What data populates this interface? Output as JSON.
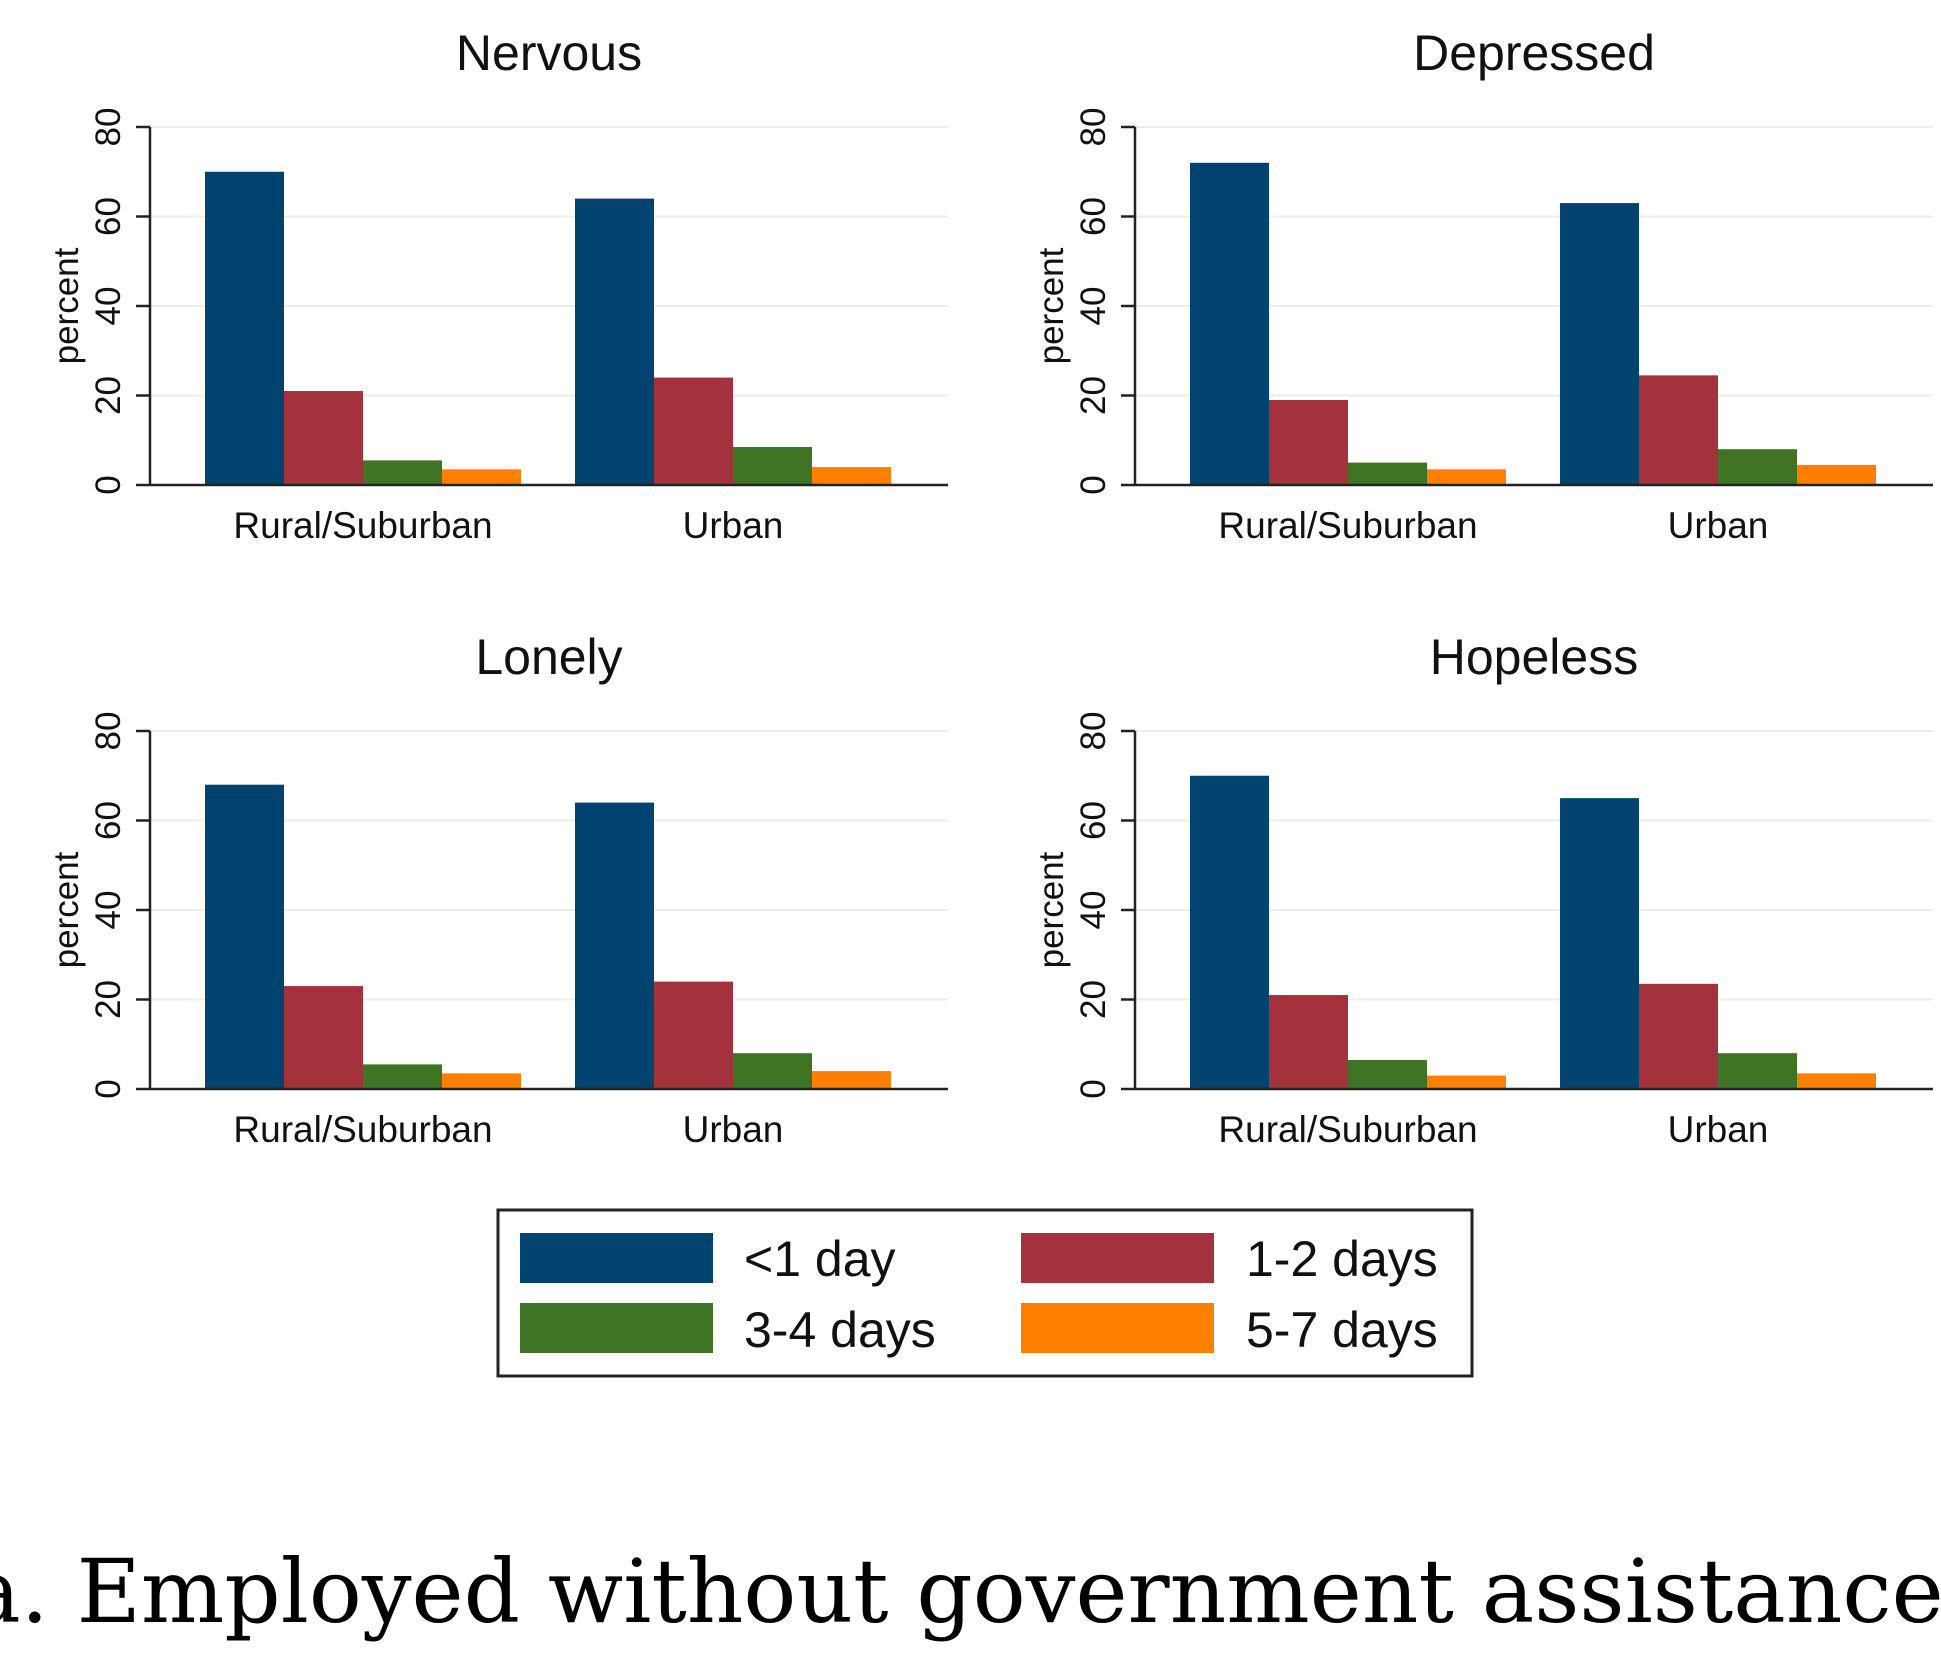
{
  "caption": "a. Employed without government assistance.",
  "legend": [
    {
      "label": "<1 day",
      "color": "#00436f"
    },
    {
      "label": "1-2 days",
      "color": "#a4323d"
    },
    {
      "label": "3-4 days",
      "color": "#3e7424"
    },
    {
      "label": "5-7 days",
      "color": "#ff7f00"
    }
  ],
  "chart_data": [
    {
      "type": "bar",
      "title": "Nervous",
      "ylabel": "percent",
      "ylim": [
        0,
        80
      ],
      "yticks": [
        0,
        20,
        40,
        60,
        80
      ],
      "categories": [
        "Rural/Suburban",
        "Urban"
      ],
      "series": [
        {
          "name": "<1 day",
          "values": [
            70,
            64
          ]
        },
        {
          "name": "1-2 days",
          "values": [
            21,
            24
          ]
        },
        {
          "name": "3-4 days",
          "values": [
            5.5,
            8.5
          ]
        },
        {
          "name": "5-7 days",
          "values": [
            3.5,
            4
          ]
        }
      ]
    },
    {
      "type": "bar",
      "title": "Depressed",
      "ylabel": "percent",
      "ylim": [
        0,
        80
      ],
      "yticks": [
        0,
        20,
        40,
        60,
        80
      ],
      "categories": [
        "Rural/Suburban",
        "Urban"
      ],
      "series": [
        {
          "name": "<1 day",
          "values": [
            72,
            63
          ]
        },
        {
          "name": "1-2 days",
          "values": [
            19,
            24.5
          ]
        },
        {
          "name": "3-4 days",
          "values": [
            5,
            8
          ]
        },
        {
          "name": "5-7 days",
          "values": [
            3.5,
            4.5
          ]
        }
      ]
    },
    {
      "type": "bar",
      "title": "Lonely",
      "ylabel": "percent",
      "ylim": [
        0,
        80
      ],
      "yticks": [
        0,
        20,
        40,
        60,
        80
      ],
      "categories": [
        "Rural/Suburban",
        "Urban"
      ],
      "series": [
        {
          "name": "<1 day",
          "values": [
            68,
            64
          ]
        },
        {
          "name": "1-2 days",
          "values": [
            23,
            24
          ]
        },
        {
          "name": "3-4 days",
          "values": [
            5.5,
            8
          ]
        },
        {
          "name": "5-7 days",
          "values": [
            3.5,
            4
          ]
        }
      ]
    },
    {
      "type": "bar",
      "title": "Hopeless",
      "ylabel": "percent",
      "ylim": [
        0,
        80
      ],
      "yticks": [
        0,
        20,
        40,
        60,
        80
      ],
      "categories": [
        "Rural/Suburban",
        "Urban"
      ],
      "series": [
        {
          "name": "<1 day",
          "values": [
            70,
            65
          ]
        },
        {
          "name": "1-2 days",
          "values": [
            21,
            23.5
          ]
        },
        {
          "name": "3-4 days",
          "values": [
            6.5,
            8
          ]
        },
        {
          "name": "5-7 days",
          "values": [
            3,
            3.5
          ]
        }
      ]
    }
  ]
}
